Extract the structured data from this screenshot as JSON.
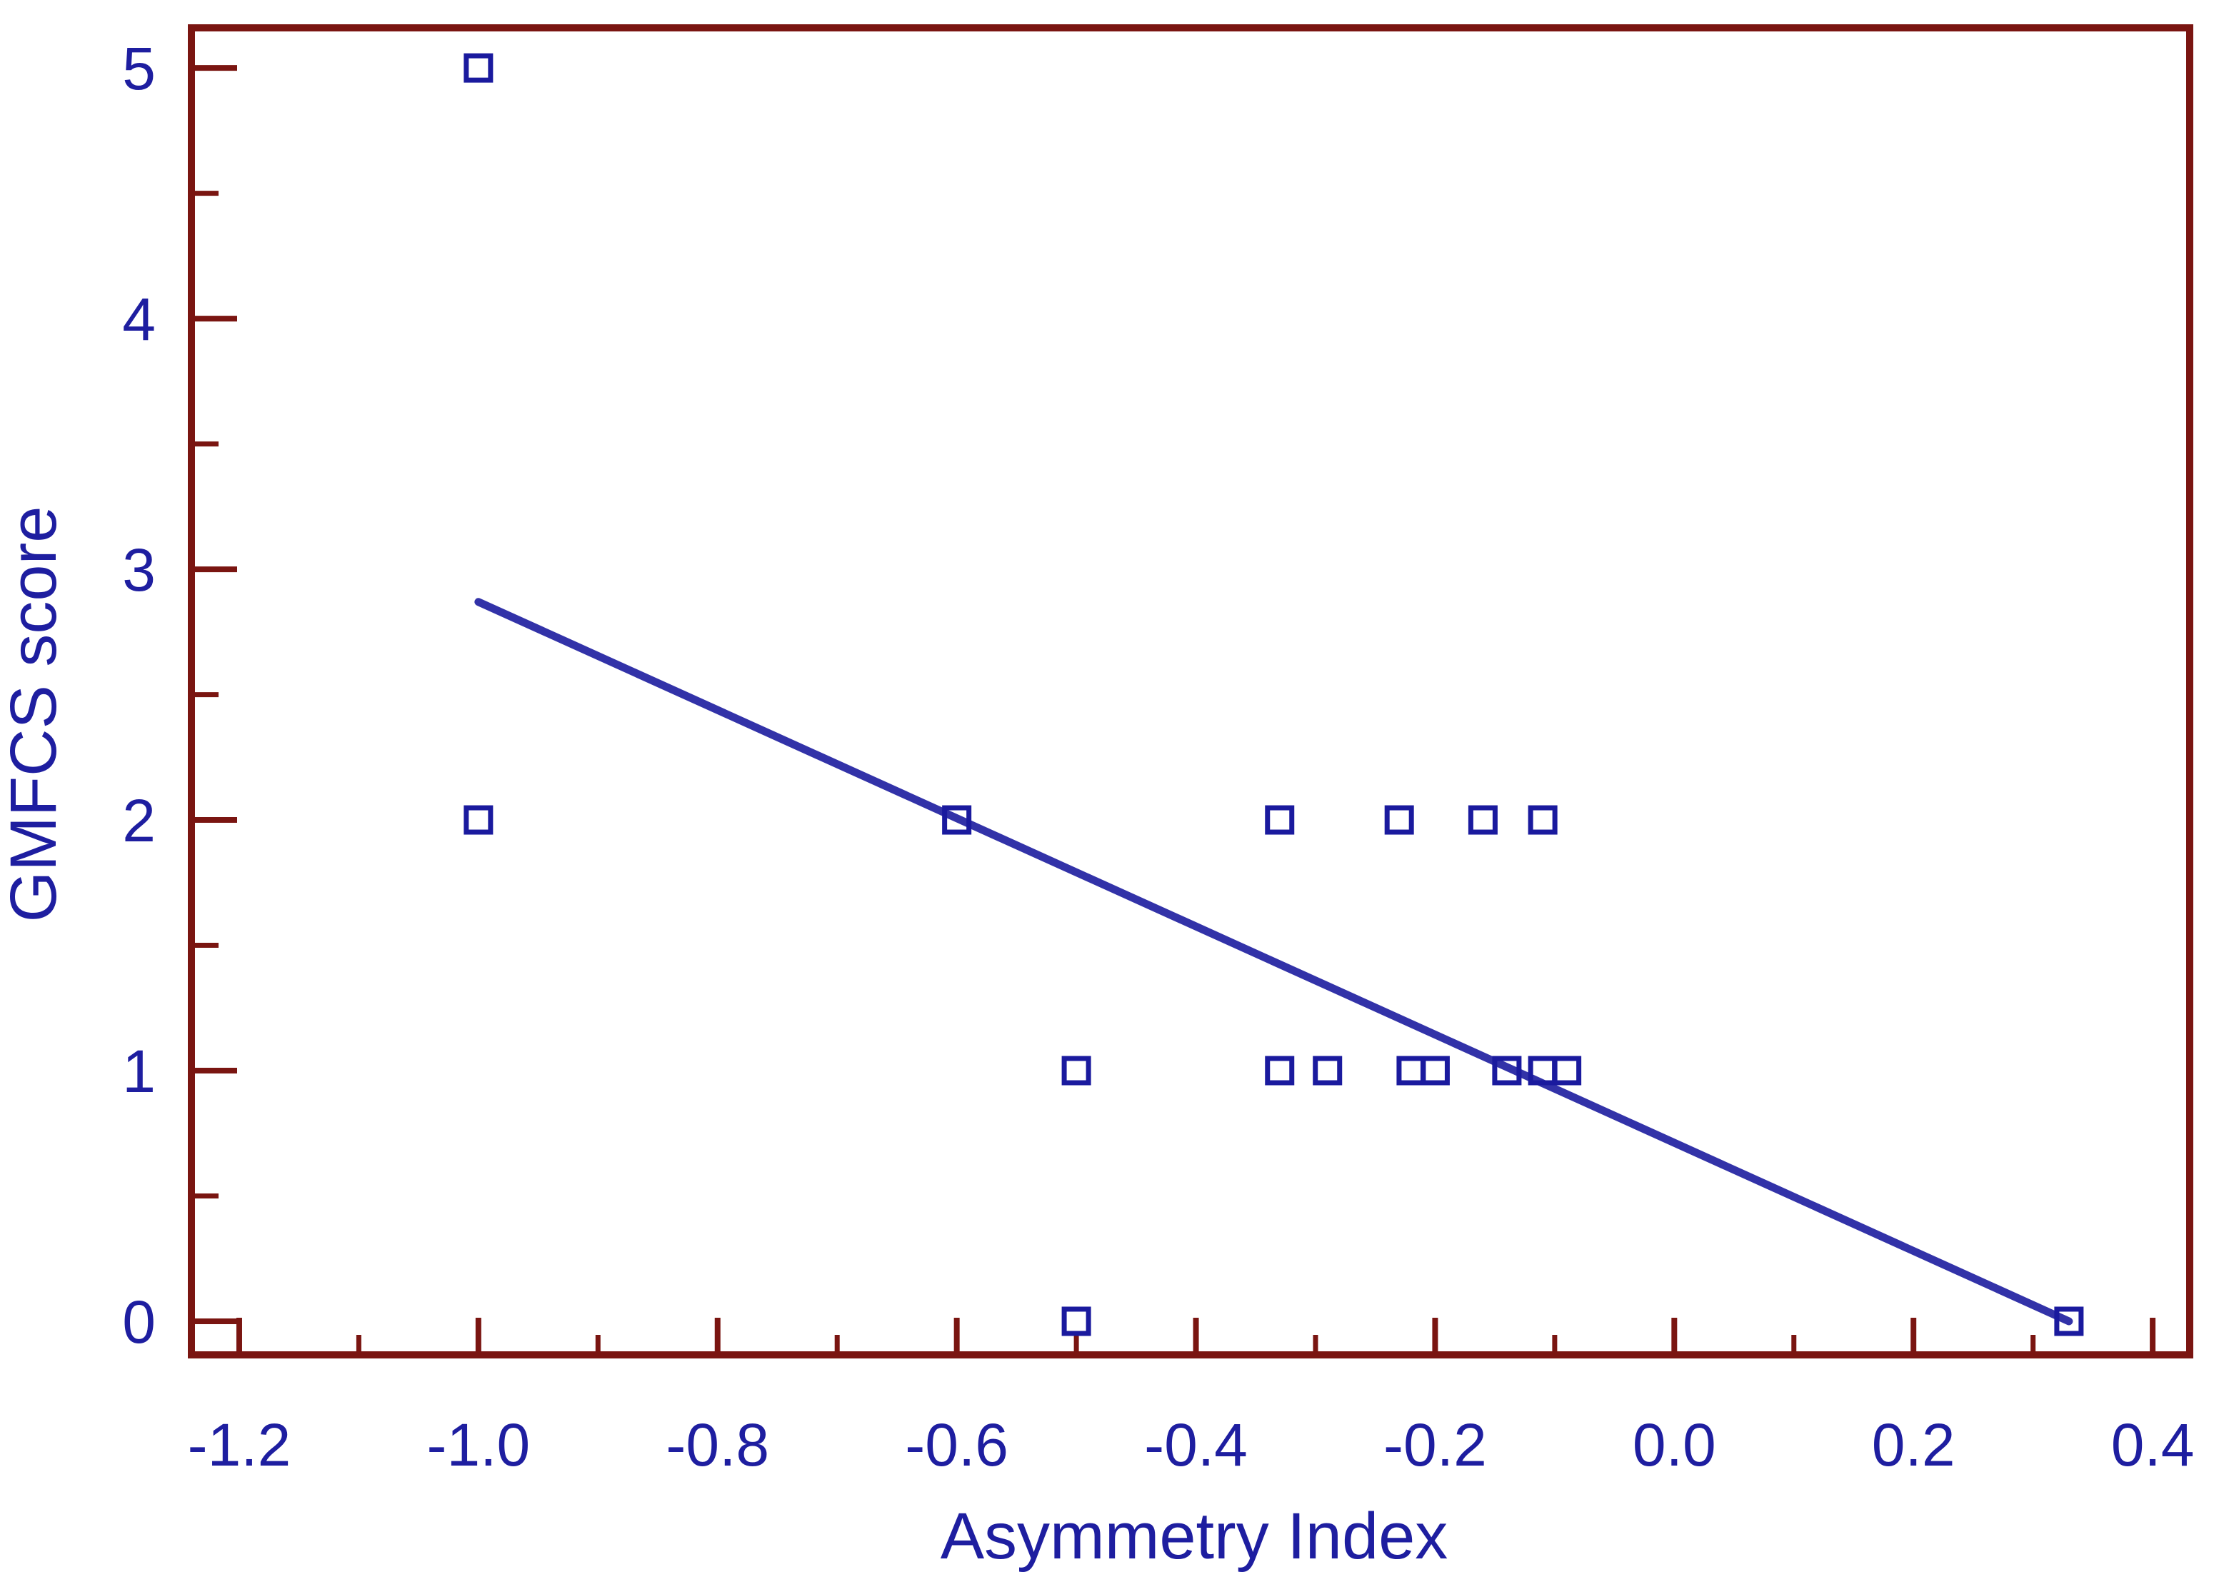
{
  "chart_data": {
    "type": "scatter",
    "title": "",
    "xlabel": "Asymmetry Index",
    "ylabel": "GMFCS score",
    "xlim": [
      -1.24,
      0.431
    ],
    "ylim": [
      -0.134,
      5.16
    ],
    "x_ticks": [
      -1.2,
      -1.0,
      -0.8,
      -0.6,
      -0.4,
      -0.2,
      0.0,
      0.2,
      0.4
    ],
    "x_tick_labels": [
      "-1.2",
      "-1.0",
      "-0.8",
      "-0.6",
      "-0.4",
      "-0.2",
      "0.0",
      "0.2",
      "0.4"
    ],
    "x_minor_ticks": [
      -1.1,
      -0.9,
      -0.7,
      -0.5,
      -0.3,
      -0.1,
      0.1,
      0.3
    ],
    "y_ticks": [
      0,
      1,
      2,
      3,
      4,
      5
    ],
    "y_tick_labels": [
      "0",
      "1",
      "2",
      "3",
      "4",
      "5"
    ],
    "y_minor_ticks": [
      0.5,
      1.5,
      2.5,
      3.5,
      4.5
    ],
    "grid": false,
    "legend": "none",
    "marker_style": "open-square",
    "points": [
      {
        "x": -1.0,
        "y": 5
      },
      {
        "x": -1.0,
        "y": 2
      },
      {
        "x": -0.6,
        "y": 2
      },
      {
        "x": -0.33,
        "y": 2
      },
      {
        "x": -0.23,
        "y": 2
      },
      {
        "x": -0.16,
        "y": 2
      },
      {
        "x": -0.11,
        "y": 2
      },
      {
        "x": -0.5,
        "y": 1
      },
      {
        "x": -0.33,
        "y": 1
      },
      {
        "x": -0.29,
        "y": 1
      },
      {
        "x": -0.22,
        "y": 1
      },
      {
        "x": -0.2,
        "y": 1
      },
      {
        "x": -0.14,
        "y": 1
      },
      {
        "x": -0.11,
        "y": 1
      },
      {
        "x": -0.09,
        "y": 1
      },
      {
        "x": -0.5,
        "y": 0
      },
      {
        "x": 0.33,
        "y": 0
      }
    ],
    "trend_line": {
      "x1": -1.0,
      "y1": 2.87,
      "x2": 0.33,
      "y2": 0.0
    },
    "colors": {
      "background": "#ffffff",
      "frame": "#7a1511",
      "tick": "#7a1511",
      "marker": "#1a1a9e",
      "trend_line": "#3232a8",
      "text": "#1e1ea0"
    }
  }
}
